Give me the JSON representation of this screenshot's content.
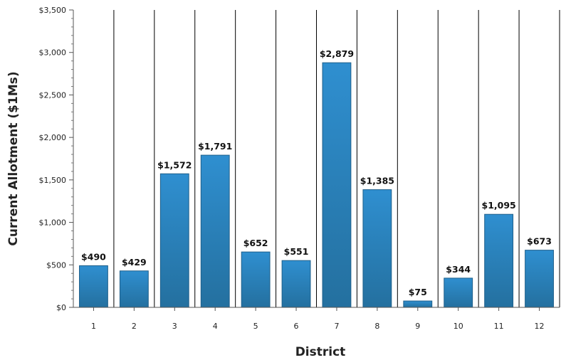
{
  "chart_data": {
    "type": "bar",
    "xlabel": "District",
    "ylabel": "Current Allotment ($1Ms)",
    "categories": [
      "1",
      "2",
      "3",
      "4",
      "5",
      "6",
      "7",
      "8",
      "9",
      "10",
      "11",
      "12"
    ],
    "values": [
      490,
      429,
      1572,
      1791,
      652,
      551,
      2879,
      1385,
      75,
      344,
      1095,
      673
    ],
    "data_labels": [
      "$490",
      "$429",
      "$1,572",
      "$1,791",
      "$652",
      "$551",
      "$2,879",
      "$1,385",
      "$75",
      "$344",
      "$1,095",
      "$673"
    ],
    "ylim": [
      0,
      3500
    ],
    "yticks": [
      0,
      500,
      1000,
      1500,
      2000,
      2500,
      3000,
      3500
    ],
    "ytick_labels": [
      "$0",
      "$500",
      "$1,000",
      "$1,500",
      "$2,000",
      "$2,500",
      "$3,000",
      "$3,500"
    ],
    "grid": "vertical",
    "legend": "none",
    "bar_color": "#2f8fd0",
    "bar_color_dark": "#24709f"
  }
}
